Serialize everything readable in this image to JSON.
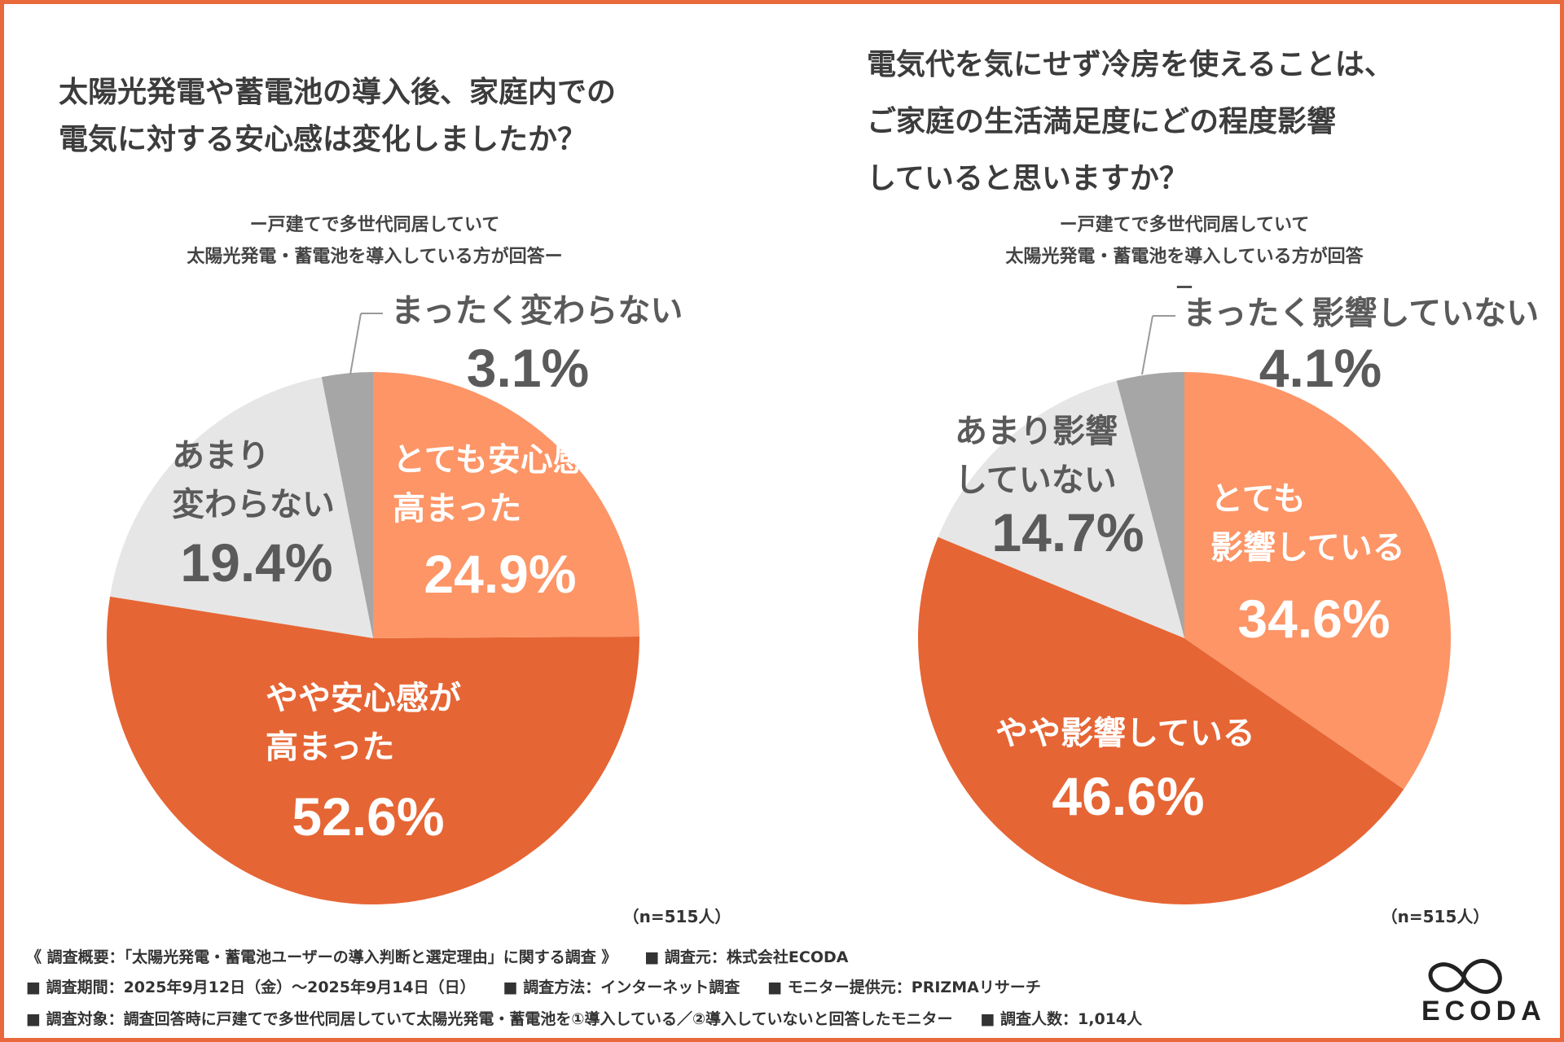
{
  "chart_data": [
    {
      "type": "pie",
      "title": "太陽光発電や蓄電池の導入後、家庭内での\n電気に対する安心感は変化しましたか？",
      "subtitle": "ー戸建てで多世代同居していて\n太陽光発電・蓄電池を導入している方が回答ー",
      "categories": [
        "とても安心感が\n高まった",
        "やや安心感が\n高まった",
        "あまり\n変わらない",
        "まったく変わらない"
      ],
      "values": [
        24.9,
        52.6,
        19.4,
        3.1
      ],
      "value_labels": [
        "24.9%",
        "52.6%",
        "19.4%",
        "3.1%"
      ],
      "colors": [
        "#fd9566",
        "#e66534",
        "#e6e6e6",
        "#a6a6a6"
      ],
      "note": "（n=515人）"
    },
    {
      "type": "pie",
      "title": "電気代を気にせず冷房を使えることは、\nご家庭の生活満足度にどの程度影響\nしていると思いますか？",
      "subtitle": "ー戸建てで多世代同居していて\n太陽光発電・蓄電池を導入している方が回答ー",
      "categories": [
        "とても\n影響している",
        "やや影響している",
        "あまり影響\nしていない",
        "まったく影響していない"
      ],
      "values": [
        34.6,
        46.6,
        14.7,
        4.1
      ],
      "value_labels": [
        "34.6%",
        "46.6%",
        "14.7%",
        "4.1%"
      ],
      "colors": [
        "#fd9566",
        "#e66534",
        "#e6e6e6",
        "#a6a6a6"
      ],
      "note": "（n=515人）"
    }
  ],
  "footer": [
    [
      "《 調査概要：「太陽光発電・蓄電池ユーザーの導入判断と選定理由」に関する調査 》",
      "■ 調査元：株式会社ECODA"
    ],
    [
      "■ 調査期間：2025年9月12日（金）〜2025年9月14日（日）",
      "■ 調査方法：インターネット調査",
      "■ モニター提供元：PRIZMAリサーチ"
    ],
    [
      "■ 調査対象：調査回答時に戸建てで多世代同居していて太陽光発電・蓄電池を①導入している／②導入していないと回答したモニター",
      "■ 調査人数：1,014人"
    ]
  ],
  "logo": "ECODA"
}
